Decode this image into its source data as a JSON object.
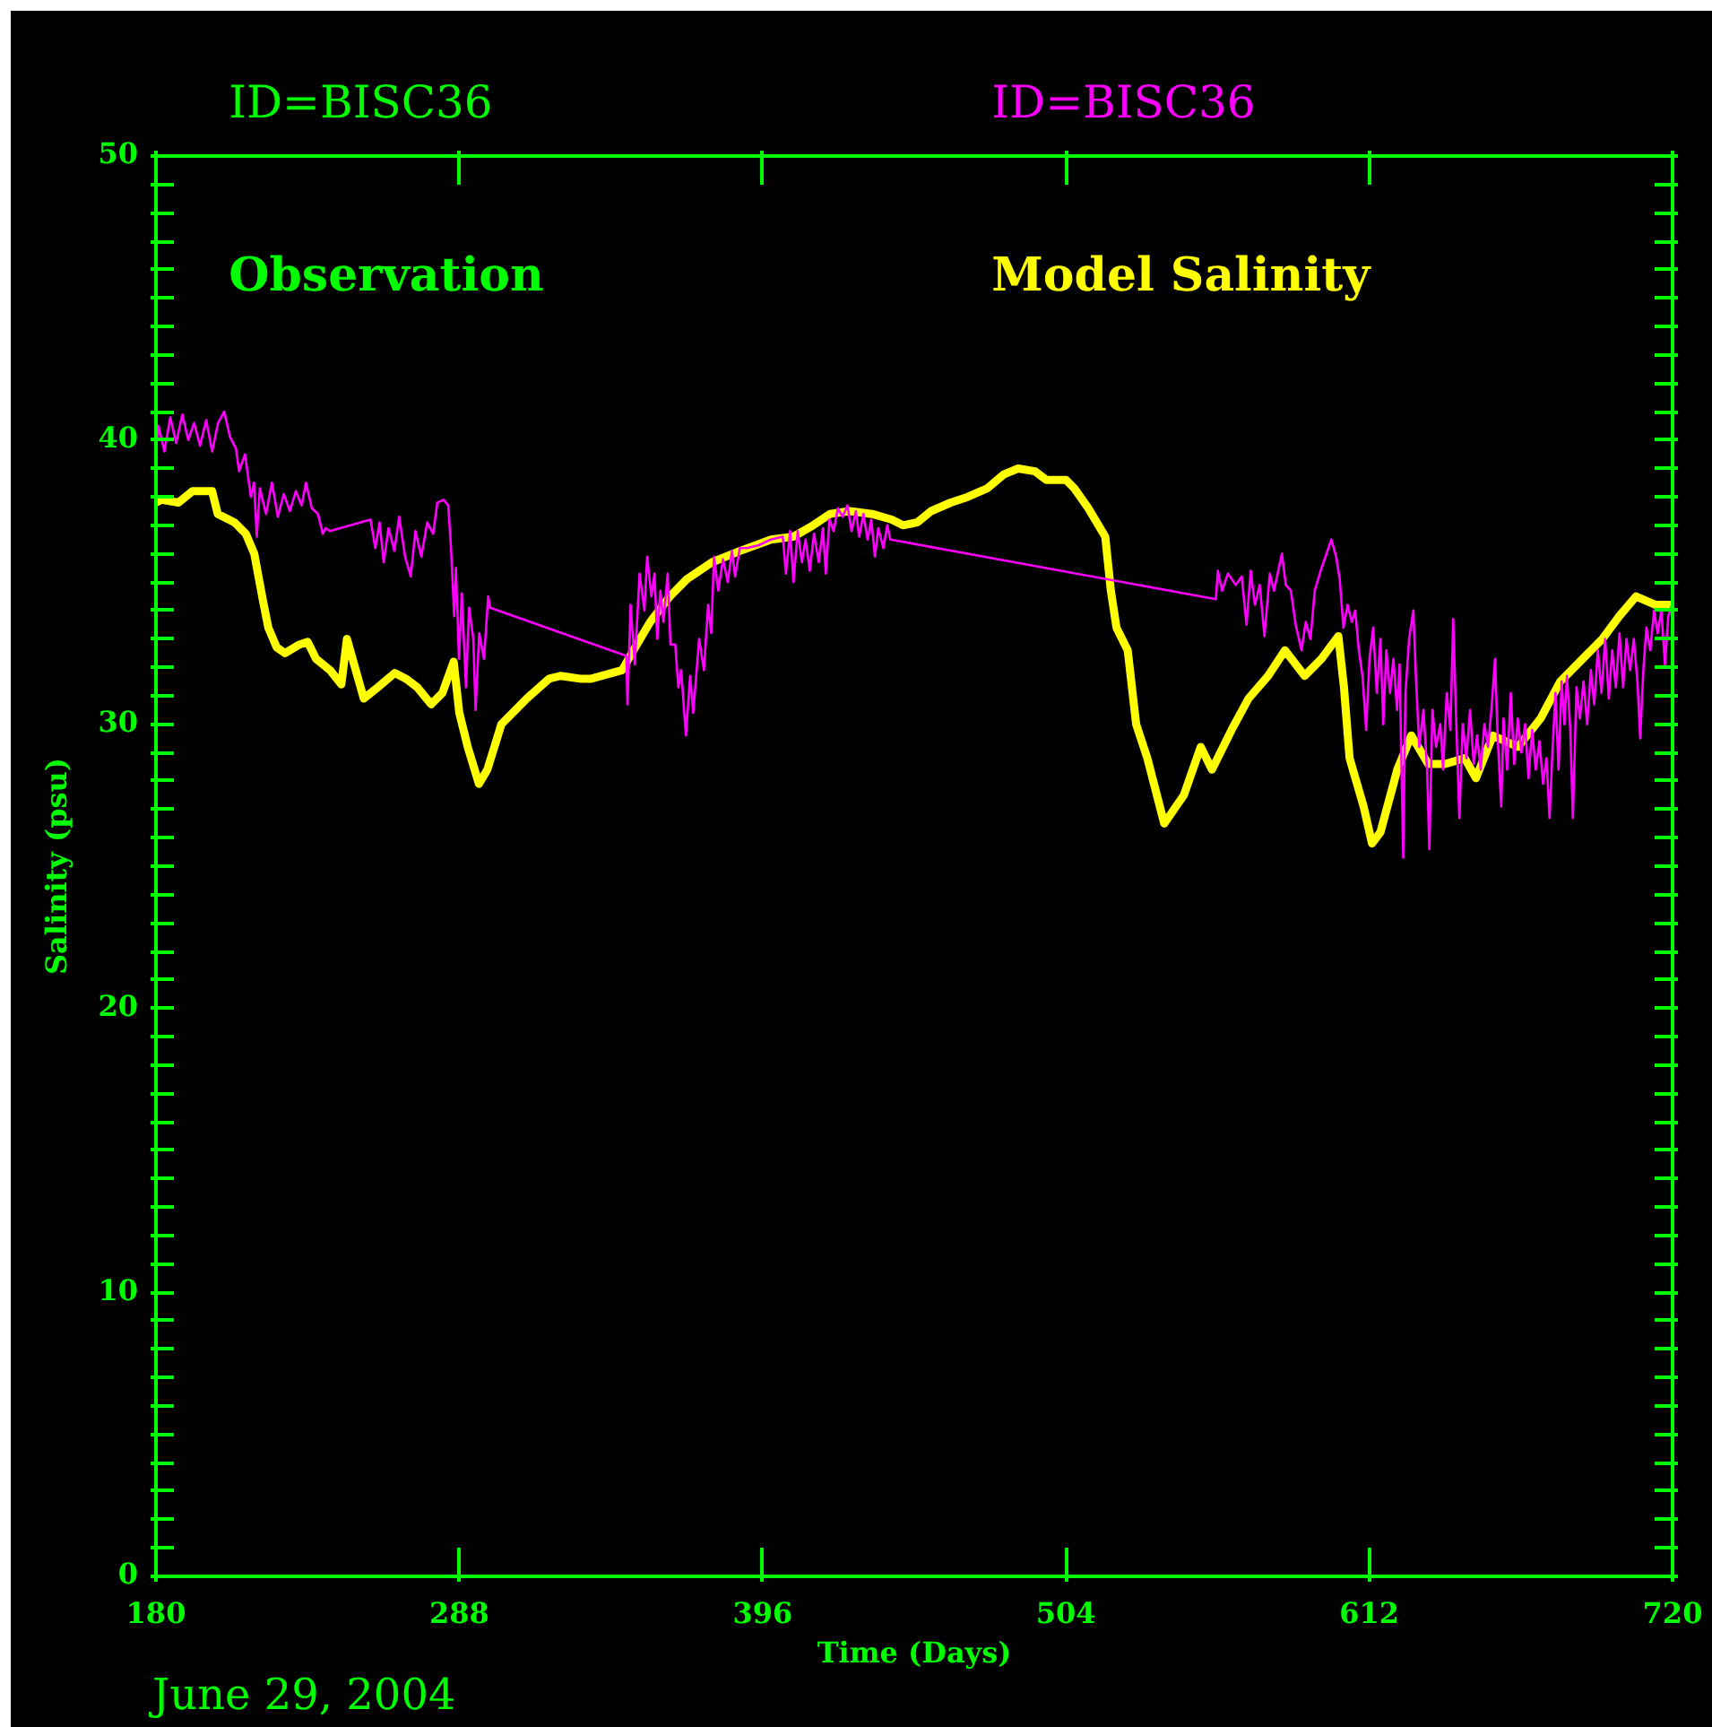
{
  "chart_data": {
    "type": "line",
    "xlabel": "Time (Days)",
    "ylabel": "Salinity (psu)",
    "annotations": [
      "ID=BISC36",
      "Observation",
      "June 29, 2004"
    ],
    "legend": "top",
    "xlim": [
      180,
      720
    ],
    "xticks": [
      180,
      288,
      396,
      504,
      612,
      720
    ],
    "ylim": [
      0,
      50
    ],
    "yticks": [
      0,
      {
        "value": 1,
        "label": null
      },
      {
        "value": 2,
        "label": null
      },
      {
        "value": 3,
        "label": null
      },
      {
        "value": 4,
        "label": null
      },
      {
        "value": 5,
        "label": null
      },
      {
        "value": 6,
        "label": null
      },
      {
        "value": 7,
        "label": null
      },
      {
        "value": 8,
        "label": null
      },
      {
        "value": 9,
        "label": null
      },
      10,
      {
        "value": 11,
        "label": null
      },
      {
        "value": 12,
        "label": null
      },
      {
        "value": 13,
        "label": null
      },
      {
        "value": 14,
        "label": null
      },
      {
        "value": 15,
        "label": null
      },
      {
        "value": 16,
        "label": null
      },
      {
        "value": 17,
        "label": null
      },
      {
        "value": 18,
        "label": null
      },
      {
        "value": 19,
        "label": null
      },
      20,
      {
        "value": 21,
        "label": null
      },
      {
        "value": 22,
        "label": null
      },
      {
        "value": 23,
        "label": null
      },
      {
        "value": 24,
        "label": null
      },
      {
        "value": 25,
        "label": null
      },
      {
        "value": 26,
        "label": null
      },
      {
        "value": 27,
        "label": null
      },
      {
        "value": 28,
        "label": null
      },
      {
        "value": 29,
        "label": null
      },
      30,
      {
        "value": 31,
        "label": null
      },
      {
        "value": 32,
        "label": null
      },
      {
        "value": 33,
        "label": null
      },
      {
        "value": 34,
        "label": null
      },
      {
        "value": 35,
        "label": null
      },
      {
        "value": 36,
        "label": null
      },
      {
        "value": 37,
        "label": null
      },
      {
        "value": 38,
        "label": null
      },
      {
        "value": 39,
        "label": null
      },
      40,
      {
        "value": 41,
        "label": null
      },
      {
        "value": 42,
        "label": null
      },
      {
        "value": 43,
        "label": null
      },
      {
        "value": 44,
        "label": null
      },
      {
        "value": 45,
        "label": null
      },
      {
        "value": 46,
        "label": null
      },
      {
        "value": 47,
        "label": null
      },
      {
        "value": 48,
        "label": null
      },
      {
        "value": 49,
        "label": null
      },
      50
    ],
    "series": [
      {
        "name": "ID=BISC36",
        "color": "#ff00ff",
        "x": [
          180.0,
          180.9,
          183.0,
          185.1,
          187.2,
          189.4,
          191.5,
          193.6,
          195.7,
          197.9,
          200.0,
          202.1,
          204.3,
          206.4,
          208.5,
          209.6,
          211.7,
          213.8,
          214.9,
          215.9,
          217.0,
          219.2,
          221.3,
          223.4,
          225.5,
          227.7,
          229.8,
          231.9,
          233.4,
          235.5,
          237.7,
          239.4,
          240.4,
          241.9,
          256.4,
          258.1,
          259.6,
          261.1,
          262.8,
          264.9,
          266.6,
          268.7,
          270.7,
          272.4,
          274.5,
          276.6,
          278.7,
          280.2,
          282.4,
          284.1,
          285.1,
          286.2,
          286.8,
          287.9,
          288.9,
          290.4,
          291.5,
          293.0,
          293.8,
          295.1,
          296.8,
          298.3,
          299.0,
          347.5,
          347.9,
          349.0,
          350.5,
          352.2,
          353.9,
          354.9,
          356.4,
          357.5,
          358.5,
          359.6,
          360.7,
          362.2,
          363.2,
          364.9,
          366.0,
          367.0,
          368.7,
          370.2,
          371.3,
          373.4,
          375.1,
          376.6,
          377.7,
          378.7,
          380.2,
          381.9,
          383.6,
          385.1,
          386.2,
          387.9,
          390.4,
          394.7,
          398.9,
          403.2,
          404.3,
          405.8,
          407.0,
          408.5,
          410.0,
          411.3,
          412.8,
          414.3,
          416.0,
          417.5,
          418.5,
          419.8,
          421.3,
          422.8,
          424.5,
          426.2,
          427.7,
          429.2,
          430.4,
          431.9,
          433.4,
          434.7,
          436.0,
          437.2,
          439.0,
          440.4,
          441.5,
          557.4,
          558.1,
          559.6,
          561.7,
          564.5,
          566.6,
          568.3,
          569.8,
          571.3,
          573.0,
          574.7,
          576.6,
          578.1,
          580.9,
          582.3,
          584.1,
          585.8,
          587.9,
          589.4,
          591.1,
          592.6,
          594.7,
          596.8,
          598.5,
          600.2,
          601.5,
          602.8,
          604.3,
          605.8,
          607.0,
          608.3,
          609.6,
          610.9,
          612.1,
          613.4,
          614.7,
          616.0,
          617.0,
          618.1,
          619.4,
          620.6,
          621.9,
          622.8,
          624.1,
          624.9,
          626.2,
          627.7,
          628.7,
          629.8,
          631.3,
          632.6,
          633.4,
          634.5,
          635.8,
          637.3,
          638.3,
          639.6,
          640.9,
          641.9,
          643.0,
          644.1,
          645.3,
          646.6,
          647.9,
          649.2,
          650.4,
          651.7,
          653.0,
          654.3,
          655.5,
          656.8,
          657.7,
          659.0,
          659.8,
          661.1,
          662.4,
          663.6,
          664.9,
          666.2,
          667.5,
          668.7,
          670.0,
          671.3,
          672.6,
          673.9,
          675.1,
          676.2,
          677.3,
          678.3,
          679.4,
          680.5,
          681.5,
          682.4,
          683.6,
          684.5,
          685.8,
          687.0,
          688.3,
          689.6,
          690.9,
          692.1,
          693.4,
          694.7,
          696.0,
          697.3,
          698.5,
          699.8,
          701.1,
          702.4,
          703.6,
          704.9,
          706.2,
          707.5,
          708.5,
          709.6,
          710.7,
          712.1,
          713.4,
          714.7,
          716.0,
          717.3,
          718.5,
          719.8
        ],
        "values": [
          39.7,
          40.5,
          39.6,
          40.8,
          39.9,
          40.9,
          40.0,
          40.6,
          39.8,
          40.7,
          39.6,
          40.6,
          41.0,
          40.1,
          39.7,
          38.9,
          39.5,
          38.0,
          38.5,
          36.6,
          38.3,
          37.4,
          38.5,
          37.3,
          38.1,
          37.5,
          38.2,
          37.7,
          38.5,
          37.6,
          37.4,
          36.7,
          36.9,
          36.8,
          37.2,
          36.2,
          37.1,
          35.7,
          36.9,
          36.1,
          37.3,
          35.9,
          35.2,
          36.8,
          35.9,
          37.1,
          36.7,
          37.8,
          37.9,
          37.7,
          36.1,
          33.8,
          35.5,
          32.3,
          34.6,
          31.3,
          34.1,
          33.0,
          30.5,
          33.2,
          32.3,
          34.5,
          34.1,
          32.4,
          30.7,
          34.2,
          32.1,
          35.3,
          34.0,
          35.9,
          34.5,
          35.3,
          33.0,
          34.7,
          33.6,
          35.3,
          32.8,
          32.8,
          31.3,
          31.9,
          29.6,
          31.7,
          30.4,
          33.0,
          31.9,
          34.2,
          33.2,
          35.9,
          34.7,
          35.8,
          35.0,
          36.1,
          35.2,
          36.2,
          36.2,
          36.3,
          36.5,
          36.6,
          35.3,
          36.8,
          35.0,
          36.8,
          35.7,
          36.5,
          35.4,
          36.7,
          35.7,
          36.9,
          35.3,
          37.2,
          36.8,
          37.6,
          37.3,
          37.7,
          36.8,
          37.5,
          36.6,
          37.4,
          36.5,
          37.2,
          35.9,
          36.9,
          36.2,
          37.0,
          36.5,
          34.4,
          35.4,
          34.7,
          35.3,
          34.9,
          35.2,
          33.5,
          35.4,
          34.2,
          34.9,
          33.1,
          35.3,
          34.7,
          36.0,
          34.9,
          34.7,
          33.5,
          32.6,
          33.6,
          33.0,
          34.7,
          35.4,
          36.0,
          36.5,
          35.9,
          35.1,
          33.4,
          34.2,
          33.6,
          34.0,
          32.6,
          31.7,
          29.8,
          32.3,
          33.4,
          31.1,
          33.0,
          30.0,
          32.6,
          31.1,
          32.3,
          30.5,
          32.1,
          25.3,
          31.1,
          33.0,
          34.0,
          31.5,
          29.2,
          30.5,
          28.4,
          25.6,
          30.5,
          29.2,
          30.0,
          28.4,
          31.1,
          29.8,
          33.7,
          30.0,
          26.7,
          30.0,
          28.8,
          30.5,
          28.6,
          29.6,
          28.4,
          30.0,
          29.2,
          30.5,
          32.3,
          29.6,
          27.1,
          30.2,
          28.4,
          31.1,
          28.6,
          30.2,
          29.0,
          30.0,
          28.1,
          29.8,
          28.4,
          29.4,
          27.9,
          28.8,
          26.7,
          29.2,
          31.1,
          28.4,
          31.5,
          30.0,
          31.7,
          29.8,
          26.7,
          31.3,
          30.2,
          31.5,
          30.0,
          31.9,
          30.7,
          32.6,
          31.1,
          33.0,
          30.9,
          32.6,
          31.3,
          33.2,
          31.3,
          33.0,
          31.9,
          33.0,
          31.5,
          29.5,
          31.9,
          33.4,
          32.6,
          34.0,
          33.2,
          34.0,
          32.1,
          33.8,
          34.2
        ]
      },
      {
        "name": "Model Salinity",
        "color": "#ffff00",
        "x": [
          180,
          182,
          188,
          193,
          200,
          202,
          208,
          212,
          215,
          218,
          220,
          223,
          226,
          231,
          234,
          237,
          242,
          246,
          248,
          250,
          254,
          259,
          265,
          269,
          273,
          278,
          282,
          286,
          288,
          291,
          295,
          298,
          303,
          312,
          320,
          324,
          331,
          335,
          346,
          350,
          356,
          363,
          369,
          378,
          388,
          399,
          407,
          414,
          420,
          427,
          435,
          442,
          446,
          451,
          456,
          463,
          469,
          476,
          482,
          487,
          493,
          497,
          504,
          507,
          512,
          518,
          520,
          522,
          526,
          529,
          533,
          539,
          546,
          552,
          556,
          563,
          569,
          576,
          582,
          589,
          595,
          601,
          603,
          605,
          610,
          613,
          616,
          622,
          627,
          633,
          639,
          646,
          650,
          656,
          665,
          673,
          680,
          688,
          695,
          701,
          707,
          714,
          720
        ],
        "values": [
          37.8,
          37.9,
          37.8,
          38.2,
          38.2,
          37.4,
          37.1,
          36.7,
          36.0,
          34.4,
          33.4,
          32.7,
          32.5,
          32.8,
          32.9,
          32.3,
          31.9,
          31.4,
          33.0,
          32.3,
          30.9,
          31.3,
          31.8,
          31.6,
          31.3,
          30.7,
          31.1,
          32.2,
          30.4,
          29.2,
          27.9,
          28.4,
          30.0,
          30.9,
          31.6,
          31.7,
          31.6,
          31.6,
          31.9,
          32.6,
          33.6,
          34.5,
          35.1,
          35.7,
          36.1,
          36.5,
          36.6,
          37.0,
          37.4,
          37.5,
          37.4,
          37.2,
          37.0,
          37.1,
          37.5,
          37.8,
          38.0,
          38.3,
          38.8,
          39.0,
          38.9,
          38.6,
          38.6,
          38.3,
          37.6,
          36.6,
          34.7,
          33.4,
          32.6,
          30.0,
          28.8,
          26.5,
          27.5,
          29.2,
          28.4,
          29.8,
          30.9,
          31.7,
          32.6,
          31.7,
          32.3,
          33.1,
          31.3,
          28.8,
          27.1,
          25.8,
          26.2,
          28.4,
          29.6,
          28.6,
          28.6,
          28.8,
          28.1,
          29.6,
          29.2,
          30.2,
          31.5,
          32.3,
          33.0,
          33.8,
          34.5,
          34.2,
          34.2
        ]
      }
    ]
  }
}
